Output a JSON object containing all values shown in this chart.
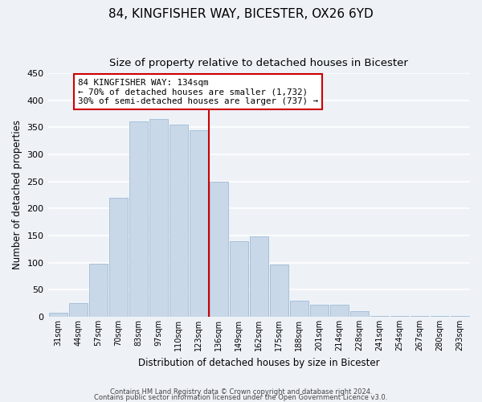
{
  "title": "84, KINGFISHER WAY, BICESTER, OX26 6YD",
  "subtitle": "Size of property relative to detached houses in Bicester",
  "xlabel": "Distribution of detached houses by size in Bicester",
  "ylabel": "Number of detached properties",
  "bar_labels": [
    "31sqm",
    "44sqm",
    "57sqm",
    "70sqm",
    "83sqm",
    "97sqm",
    "110sqm",
    "123sqm",
    "136sqm",
    "149sqm",
    "162sqm",
    "175sqm",
    "188sqm",
    "201sqm",
    "214sqm",
    "228sqm",
    "241sqm",
    "254sqm",
    "267sqm",
    "280sqm",
    "293sqm"
  ],
  "bar_values": [
    8,
    25,
    98,
    220,
    360,
    365,
    355,
    345,
    250,
    140,
    148,
    97,
    30,
    22,
    22,
    10,
    2,
    2,
    2,
    2,
    2
  ],
  "bar_color": "#c8d8e8",
  "bar_edge_color": "#a8c0d8",
  "vline_color": "#cc0000",
  "annotation_title": "84 KINGFISHER WAY: 134sqm",
  "annotation_line1": "← 70% of detached houses are smaller (1,732)",
  "annotation_line2": "30% of semi-detached houses are larger (737) →",
  "annotation_box_color": "#ffffff",
  "annotation_border_color": "#cc0000",
  "ylim": [
    0,
    450
  ],
  "yticks": [
    0,
    50,
    100,
    150,
    200,
    250,
    300,
    350,
    400,
    450
  ],
  "footer1": "Contains HM Land Registry data © Crown copyright and database right 2024.",
  "footer2": "Contains public sector information licensed under the Open Government Licence v3.0.",
  "background_color": "#eef2f7",
  "grid_color": "#ffffff",
  "title_fontsize": 11,
  "subtitle_fontsize": 9.5
}
